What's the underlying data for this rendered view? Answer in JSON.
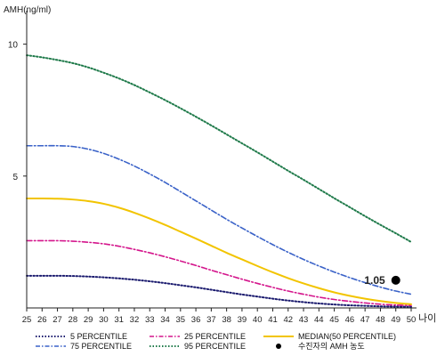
{
  "chart_data": {
    "type": "line",
    "ylabel": "AMH(ng/ml)",
    "xlabel": "나이",
    "x": [
      25,
      26,
      27,
      28,
      29,
      30,
      31,
      32,
      33,
      34,
      35,
      36,
      37,
      38,
      39,
      40,
      41,
      42,
      43,
      44,
      45,
      46,
      47,
      48,
      49,
      50
    ],
    "xlim": [
      25,
      50
    ],
    "ylim": [
      0,
      11
    ],
    "yticks": [
      5,
      10
    ],
    "grid": false,
    "legend_position": "bottom",
    "series": [
      {
        "name": "5 PERCENTILE",
        "color": "#1a1a6e",
        "style": "dotted",
        "values": [
          1.22,
          1.22,
          1.22,
          1.21,
          1.19,
          1.16,
          1.12,
          1.07,
          1.01,
          0.94,
          0.86,
          0.78,
          0.69,
          0.6,
          0.51,
          0.43,
          0.35,
          0.28,
          0.22,
          0.17,
          0.13,
          0.1,
          0.08,
          0.06,
          0.05,
          0.04
        ]
      },
      {
        "name": "25 PERCENTILE",
        "color": "#d4168c",
        "style": "dashdot",
        "values": [
          2.55,
          2.55,
          2.55,
          2.53,
          2.49,
          2.43,
          2.34,
          2.22,
          2.09,
          1.94,
          1.78,
          1.61,
          1.43,
          1.26,
          1.09,
          0.93,
          0.78,
          0.64,
          0.52,
          0.41,
          0.32,
          0.25,
          0.19,
          0.14,
          0.11,
          0.09
        ]
      },
      {
        "name": "MEDIAN(50 PERCENTILE)",
        "color": "#f2c400",
        "style": "solid",
        "values": [
          4.15,
          4.15,
          4.14,
          4.11,
          4.05,
          3.95,
          3.8,
          3.61,
          3.39,
          3.15,
          2.89,
          2.63,
          2.36,
          2.09,
          1.84,
          1.59,
          1.35,
          1.13,
          0.93,
          0.75,
          0.59,
          0.46,
          0.35,
          0.26,
          0.19,
          0.14
        ]
      },
      {
        "name": "75 PERCENTILE",
        "color": "#3a62c8",
        "style": "dashdot",
        "values": [
          6.15,
          6.15,
          6.15,
          6.12,
          6.02,
          5.86,
          5.64,
          5.38,
          5.08,
          4.76,
          4.41,
          4.06,
          3.71,
          3.36,
          3.03,
          2.71,
          2.4,
          2.11,
          1.84,
          1.59,
          1.36,
          1.15,
          0.96,
          0.79,
          0.64,
          0.52
        ]
      },
      {
        "name": "95 PERCENTILE",
        "color": "#1f7a4a",
        "style": "dotted",
        "values": [
          9.58,
          9.5,
          9.4,
          9.28,
          9.12,
          8.92,
          8.7,
          8.45,
          8.17,
          7.88,
          7.57,
          7.25,
          6.92,
          6.58,
          6.24,
          5.9,
          5.55,
          5.2,
          4.86,
          4.51,
          4.16,
          3.82,
          3.48,
          3.15,
          2.83,
          2.5
        ]
      }
    ],
    "annotation": {
      "x": 49,
      "y": 1.05,
      "label": "1.05",
      "legend_label": "수진자의 AMH 농도"
    }
  },
  "legend": {
    "p5": "5 PERCENTILE",
    "p25": "25 PERCENTILE",
    "median": "MEDIAN(50 PERCENTILE)",
    "p75": "75 PERCENTILE",
    "p95": "95 PERCENTILE",
    "patient": "수진자의 AMH 농도"
  }
}
